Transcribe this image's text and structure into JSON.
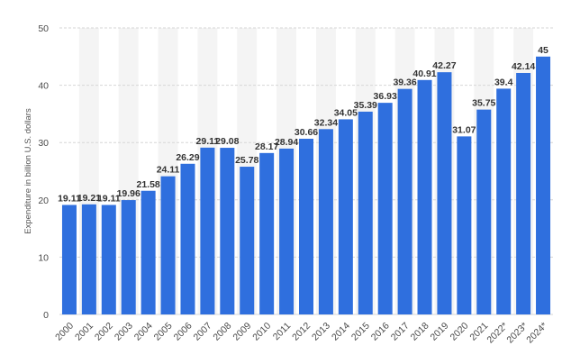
{
  "colors": {
    "bar": "#2f6fde",
    "band": "#f4f4f4",
    "grid": "#d6d6d6",
    "tick_text": "#4a4a4a",
    "data_text": "#333333"
  },
  "chart_data": {
    "type": "bar",
    "title": "",
    "xlabel": "",
    "ylabel": "Expenditure in billion U.S. dollars",
    "ylim": [
      0,
      50
    ],
    "yticks": [
      0,
      10,
      20,
      30,
      40,
      50
    ],
    "grid": "horizontal",
    "legend": "none",
    "categories": [
      "2000",
      "2001",
      "2002",
      "2003",
      "2004",
      "2005",
      "2006",
      "2007",
      "2008",
      "2009",
      "2010",
      "2011",
      "2012",
      "2013",
      "2014",
      "2015",
      "2016",
      "2017",
      "2018",
      "2019",
      "2020",
      "2021",
      "2022*",
      "2023*",
      "2024*"
    ],
    "values": [
      19.11,
      19.21,
      19.11,
      19.96,
      21.58,
      24.11,
      26.29,
      29.11,
      29.08,
      25.78,
      28.17,
      28.94,
      30.66,
      32.34,
      34.05,
      35.39,
      36.93,
      39.36,
      40.91,
      42.27,
      31.07,
      35.75,
      39.4,
      42.14,
      45
    ],
    "value_labels": [
      "19.11",
      "19.21",
      "19.11",
      "19.96",
      "21.58",
      "24.11",
      "26.29",
      "29.11",
      "29.08",
      "25.78",
      "28.17",
      "28.94",
      "30.66",
      "32.34",
      "34.05",
      "35.39",
      "36.93",
      "39.36",
      "40.91",
      "42.27",
      "31.07",
      "35.75",
      "39.4",
      "42.14",
      "45"
    ]
  }
}
